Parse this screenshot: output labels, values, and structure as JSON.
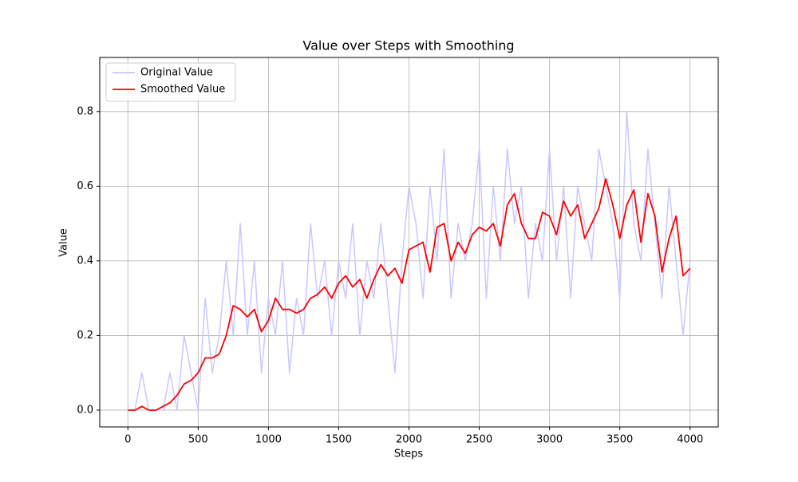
{
  "chart_data": {
    "type": "line",
    "title": "Value over Steps with Smoothing",
    "xlabel": "Steps",
    "ylabel": "Value",
    "x": [
      0,
      50,
      100,
      150,
      200,
      250,
      300,
      350,
      400,
      450,
      500,
      550,
      600,
      650,
      700,
      750,
      800,
      850,
      900,
      950,
      1000,
      1050,
      1100,
      1150,
      1200,
      1250,
      1300,
      1350,
      1400,
      1450,
      1500,
      1550,
      1600,
      1650,
      1700,
      1750,
      1800,
      1850,
      1900,
      1950,
      2000,
      2050,
      2100,
      2150,
      2200,
      2250,
      2300,
      2350,
      2400,
      2450,
      2500,
      2550,
      2600,
      2650,
      2700,
      2750,
      2800,
      2850,
      2900,
      2950,
      3000,
      3050,
      3100,
      3150,
      3200,
      3250,
      3300,
      3350,
      3400,
      3450,
      3500,
      3550,
      3600,
      3650,
      3700,
      3750,
      3800,
      3850,
      3900,
      3950,
      4000
    ],
    "series": [
      {
        "name": "Original Value",
        "color": "#c8c8ff",
        "values": [
          0,
          0,
          0.1,
          0,
          0,
          0,
          0.1,
          0,
          0.2,
          0.1,
          0,
          0.3,
          0.1,
          0.2,
          0.4,
          0.2,
          0.5,
          0.2,
          0.4,
          0.1,
          0.3,
          0.2,
          0.4,
          0.1,
          0.3,
          0.2,
          0.5,
          0.3,
          0.4,
          0.2,
          0.4,
          0.3,
          0.5,
          0.2,
          0.4,
          0.3,
          0.5,
          0.3,
          0.1,
          0.4,
          0.6,
          0.5,
          0.3,
          0.6,
          0.4,
          0.7,
          0.3,
          0.5,
          0.4,
          0.5,
          0.7,
          0.3,
          0.6,
          0.4,
          0.7,
          0.5,
          0.6,
          0.3,
          0.5,
          0.4,
          0.7,
          0.4,
          0.6,
          0.3,
          0.6,
          0.5,
          0.4,
          0.7,
          0.6,
          0.5,
          0.3,
          0.8,
          0.5,
          0.4,
          0.7,
          0.5,
          0.3,
          0.6,
          0.4,
          0.2,
          0.4
        ]
      },
      {
        "name": "Smoothed Value",
        "color": "#ff0000",
        "values": [
          0,
          0,
          0.01,
          0,
          0,
          0.01,
          0.02,
          0.04,
          0.07,
          0.08,
          0.1,
          0.14,
          0.14,
          0.15,
          0.2,
          0.28,
          0.27,
          0.25,
          0.27,
          0.21,
          0.24,
          0.3,
          0.27,
          0.27,
          0.26,
          0.27,
          0.3,
          0.31,
          0.33,
          0.3,
          0.34,
          0.36,
          0.33,
          0.35,
          0.3,
          0.35,
          0.39,
          0.36,
          0.38,
          0.34,
          0.43,
          0.44,
          0.45,
          0.37,
          0.49,
          0.5,
          0.4,
          0.45,
          0.42,
          0.47,
          0.49,
          0.48,
          0.5,
          0.44,
          0.55,
          0.58,
          0.5,
          0.46,
          0.46,
          0.53,
          0.52,
          0.47,
          0.56,
          0.52,
          0.55,
          0.46,
          0.5,
          0.54,
          0.62,
          0.55,
          0.46,
          0.55,
          0.59,
          0.45,
          0.58,
          0.52,
          0.37,
          0.46,
          0.52,
          0.36,
          0.38
        ]
      }
    ],
    "xlim": [
      -200,
      4200
    ],
    "ylim": [
      -0.045,
      0.945
    ],
    "xticks": [
      0,
      500,
      1000,
      1500,
      2000,
      2500,
      3000,
      3500,
      4000
    ],
    "yticks": [
      {
        "value": 0,
        "label": "0.0"
      },
      0.2,
      0.4,
      0.6,
      0.8
    ],
    "grid": true,
    "legend": "upper left"
  }
}
